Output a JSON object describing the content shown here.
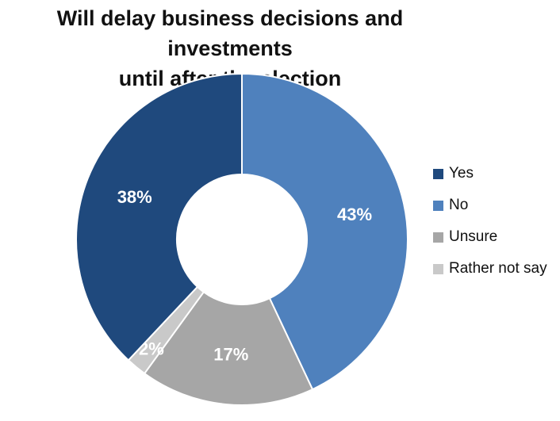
{
  "chart_data": {
    "type": "pie",
    "title": "Will delay business decisions and investments until after the election",
    "title_lines": [
      "Will delay business decisions and investments",
      "until after the election"
    ],
    "series": [
      {
        "name": "No",
        "value": 43,
        "label": "43%",
        "color": "#4f81bd"
      },
      {
        "name": "Unsure",
        "value": 17,
        "label": "17%",
        "color": "#a6a6a6"
      },
      {
        "name": "Rather not say",
        "value": 2,
        "label": "2%",
        "color": "#c9c9c9"
      },
      {
        "name": "Yes",
        "value": 38,
        "label": "38%",
        "color": "#1f497d"
      }
    ],
    "legend": {
      "placement": "right",
      "items": [
        {
          "label": "Yes",
          "color": "#1f497d"
        },
        {
          "label": "No",
          "color": "#4f81bd"
        },
        {
          "label": "Unsure",
          "color": "#a6a6a6"
        },
        {
          "label": "Rather not say",
          "color": "#c9c9c9"
        }
      ]
    },
    "style": "donut"
  }
}
